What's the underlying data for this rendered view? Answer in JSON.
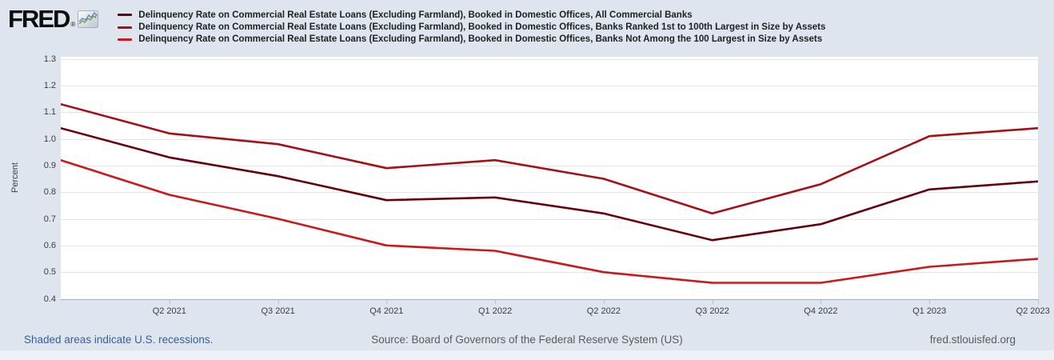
{
  "header": {
    "logo_text": "FRED",
    "registered_mark": "®"
  },
  "chart_data": {
    "type": "line",
    "title": "",
    "xlabel": "",
    "ylabel": "Percent",
    "ylim": [
      0.4,
      1.3
    ],
    "yticks": [
      1.3,
      1.2,
      1.1,
      1.0,
      0.9,
      0.8,
      0.7,
      0.6,
      0.5,
      0.4
    ],
    "grid": true,
    "legend_position": "top-left",
    "categories": [
      "Q1 2021",
      "Q2 2021",
      "Q3 2021",
      "Q4 2021",
      "Q1 2022",
      "Q2 2022",
      "Q3 2022",
      "Q4 2022",
      "Q1 2023",
      "Q2 2023"
    ],
    "x_axis_labels_shown": [
      "Q2 2021",
      "Q3 2021",
      "Q4 2021",
      "Q1 2022",
      "Q2 2022",
      "Q3 2022",
      "Q4 2022",
      "Q1 2023",
      "Q2 2023"
    ],
    "series": [
      {
        "name": "Delinquency Rate on Commercial Real Estate Loans (Excluding Farmland), Booked in Domestic Offices, All Commercial Banks",
        "color": "#67000d",
        "values": [
          1.04,
          0.93,
          0.86,
          0.77,
          0.78,
          0.72,
          0.62,
          0.68,
          0.81,
          0.84
        ]
      },
      {
        "name": "Delinquency Rate on Commercial Real Estate Loans (Excluding Farmland), Booked in Domestic Offices, Banks Ranked 1st to 100th Largest in Size by Assets",
        "color": "#a50f15",
        "values": [
          1.13,
          1.02,
          0.98,
          0.89,
          0.92,
          0.85,
          0.72,
          0.83,
          1.01,
          1.04
        ]
      },
      {
        "name": "Delinquency Rate on Commercial Real Estate Loans (Excluding Farmland), Booked in Domestic Offices, Banks Not Among the 100 Largest in Size by Assets",
        "color": "#cb181d",
        "values": [
          0.92,
          0.79,
          0.7,
          0.6,
          0.58,
          0.5,
          0.46,
          0.46,
          0.52,
          0.55
        ]
      }
    ]
  },
  "footer": {
    "recession_note": "Shaded areas indicate U.S. recessions.",
    "source": "Source: Board of Governors of the Federal Reserve System (US)",
    "site": "fred.stlouisfed.org"
  }
}
